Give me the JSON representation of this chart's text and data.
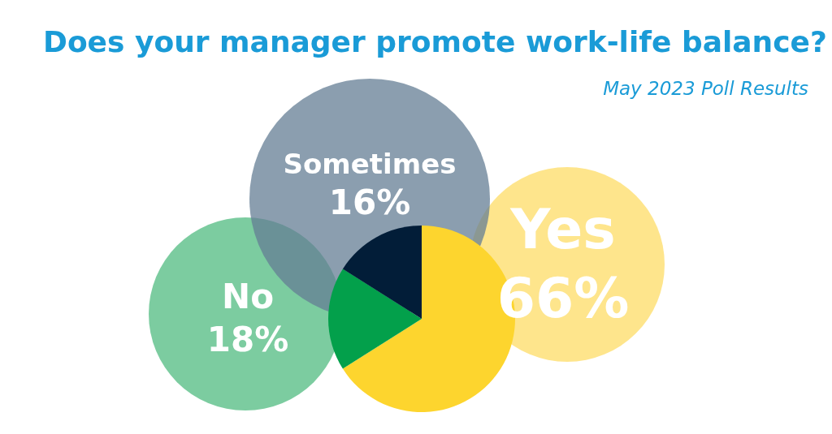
{
  "chart_data": {
    "type": "pie",
    "title": "Does your manager promote work-life balance?",
    "subtitle": "May 2023 Poll Results",
    "categories": [
      "Yes",
      "No",
      "Sometimes"
    ],
    "values": [
      66,
      18,
      16
    ],
    "colors": [
      "#fdd52e",
      "#03a04b",
      "#021d38"
    ],
    "value_labels": [
      "66%",
      "18%",
      "16%"
    ]
  }
}
